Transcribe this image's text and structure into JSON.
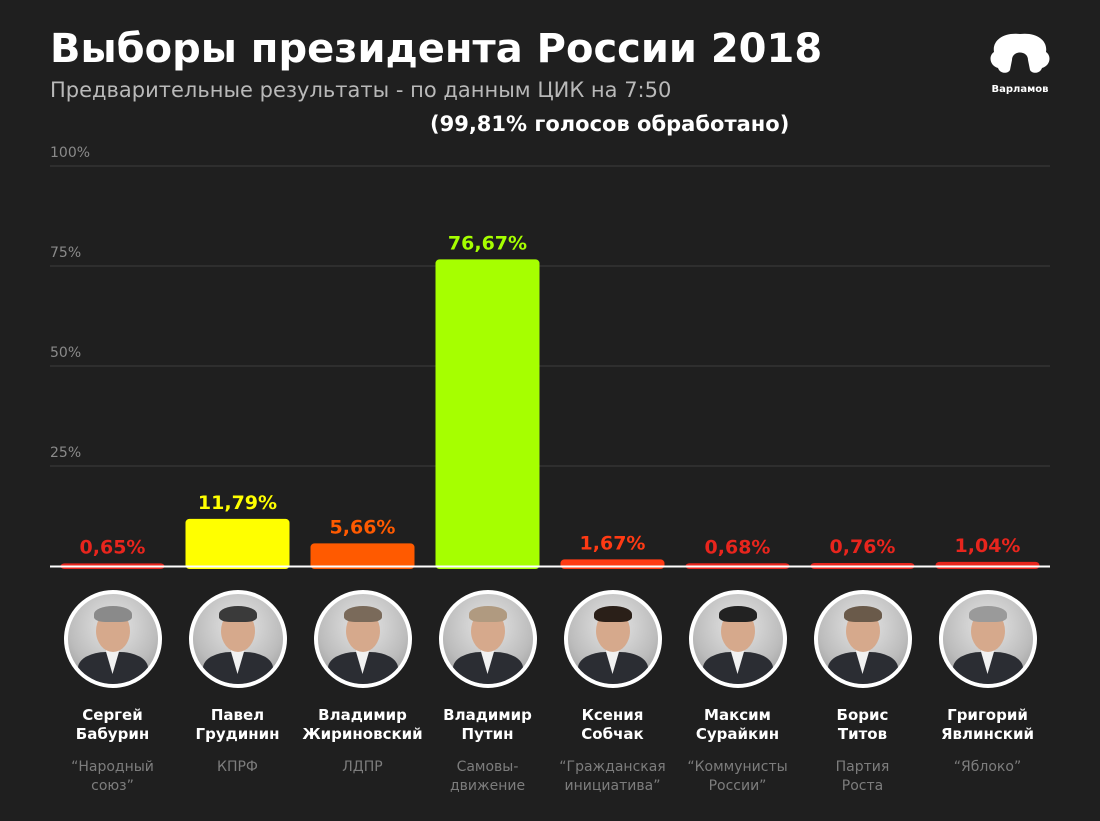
{
  "header": {
    "title": "Выборы президента России 2018",
    "subtitle": "Предварительные результаты - по данным ЦИК на 7:50",
    "processed": "(99,81%  голосов обработано)",
    "logo_text": "Варламов"
  },
  "chart_data": {
    "type": "bar",
    "title": "Выборы президента России 2018",
    "subtitle": "Предварительные результаты - по данным ЦИК на 7:50",
    "ylim": [
      0,
      100
    ],
    "y_ticks": [
      "100%",
      "75%",
      "50%",
      "25%"
    ],
    "y_tick_values": [
      100,
      75,
      50,
      25
    ],
    "grid": true,
    "categories": [
      "Сергей Бабурин",
      "Павел Грудинин",
      "Владимир Жириновский",
      "Владимир Путин",
      "Ксения Собчак",
      "Максим Сурайкин",
      "Борис Титов",
      "Григорий Явлинский"
    ],
    "values": [
      0.65,
      11.79,
      5.66,
      76.67,
      1.67,
      0.68,
      0.76,
      1.04
    ],
    "value_labels": [
      "0,65%",
      "11,79%",
      "5,66%",
      "76,67%",
      "1,67%",
      "0,68%",
      "0,76%",
      "1,04%"
    ],
    "colors": [
      "#e8251d",
      "#ffff00",
      "#ff5a00",
      "#a6ff00",
      "#ff3a14",
      "#e8251d",
      "#e8251d",
      "#e8251d"
    ],
    "label_colors": [
      "#e8251d",
      "#ffff00",
      "#ff5a00",
      "#a6ff00",
      "#ff3a14",
      "#e8251d",
      "#e8251d",
      "#e8251d"
    ]
  },
  "candidates": [
    {
      "first": "Сергей",
      "last": "Бабурин",
      "party1": "“Народный",
      "party2": "союз”",
      "hair": "#8a8a8a"
    },
    {
      "first": "Павел",
      "last": "Грудинин",
      "party1": "КПРФ",
      "party2": "",
      "hair": "#3a3a3a"
    },
    {
      "first": "Владимир",
      "last": "Жириновский",
      "party1": "ЛДПР",
      "party2": "",
      "hair": "#7a6a5a"
    },
    {
      "first": "Владимир",
      "last": "Путин",
      "party1": "Самовы-",
      "party2": "движение",
      "hair": "#b09a80"
    },
    {
      "first": "Ксения",
      "last": "Собчак",
      "party1": "“Гражданская",
      "party2": "инициатива”",
      "hair": "#2a1f18"
    },
    {
      "first": "Максим",
      "last": "Сурайкин",
      "party1": "“Коммунисты",
      "party2": "России”",
      "hair": "#222222"
    },
    {
      "first": "Борис",
      "last": "Титов",
      "party1": "Партия",
      "party2": "Роста",
      "hair": "#6a5a4a"
    },
    {
      "first": "Григорий",
      "last": "Явлинский",
      "party1": "“Яблоко”",
      "party2": "",
      "hair": "#9a9a9a"
    }
  ]
}
